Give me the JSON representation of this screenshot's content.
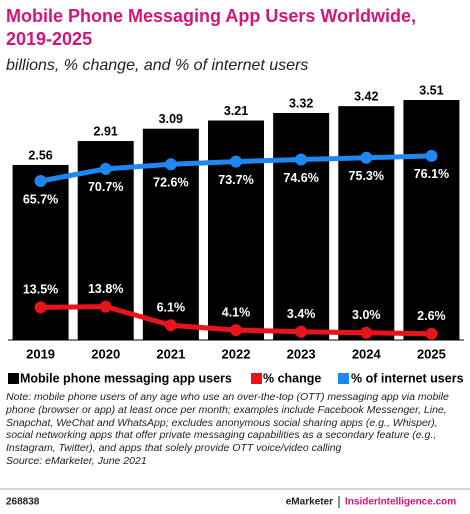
{
  "chart_data": {
    "type": "bar",
    "title": [
      "Mobile Phone Messaging App Users Worldwide,",
      "2019-2025"
    ],
    "subtitle": "billions, % change, and % of internet users",
    "categories": [
      "2019",
      "2020",
      "2021",
      "2022",
      "2023",
      "2024",
      "2025"
    ],
    "series": [
      {
        "name": "Mobile phone messaging app users",
        "type": "bar",
        "color": "#000000",
        "values": [
          2.56,
          2.91,
          3.09,
          3.21,
          3.32,
          3.42,
          3.51
        ]
      },
      {
        "name": "% change",
        "type": "line",
        "color": "#e8141c",
        "values": [
          13.5,
          13.8,
          6.1,
          4.1,
          3.4,
          3.0,
          2.6
        ],
        "value_labels": [
          "13.5%",
          "13.8%",
          "6.1%",
          "4.1%",
          "3.4%",
          "3.0%",
          "2.6%"
        ]
      },
      {
        "name": "% of internet users",
        "type": "line",
        "color": "#1e88f0",
        "values": [
          65.7,
          70.7,
          72.6,
          73.7,
          74.6,
          75.3,
          76.1
        ],
        "value_labels": [
          "65.7%",
          "70.7%",
          "72.6%",
          "73.7%",
          "74.6%",
          "75.3%",
          "76.1%"
        ]
      }
    ],
    "note": "Note: mobile phone users of any age who use an over-the-top (OTT) messaging app via mobile phone (browser or app) at least once per month; examples include Facebook Messenger, Line, Snapchat, WeChat and WhatsApp; excludes anonymous social sharing apps (e.g., Whisper), social networking apps that offer private messaging capabilities as a secondary feature (e.g., Instagram, Twitter), and apps that solely provide OTT voice/video calling",
    "source": "Source: eMarketer, June 2021",
    "footer": {
      "id": "268838",
      "brand": "eMarketer",
      "site": "InsiderIntelligence.com"
    }
  }
}
